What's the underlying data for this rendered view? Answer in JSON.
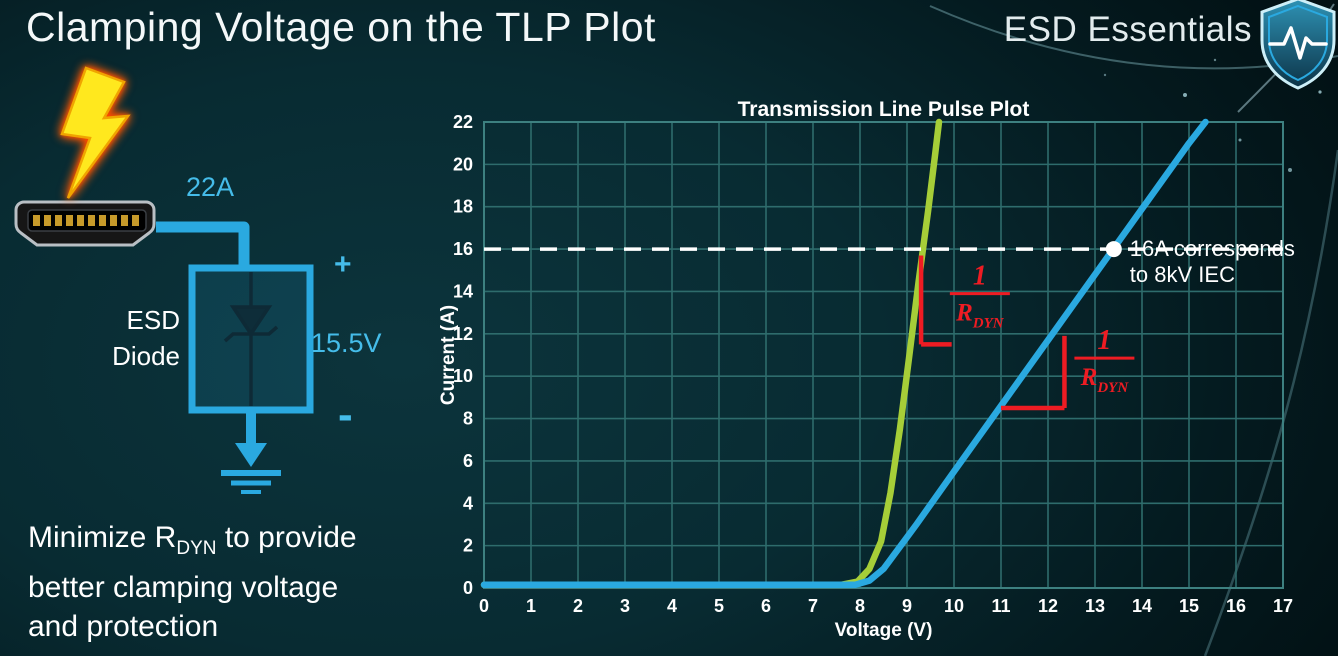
{
  "slide": {
    "title": "Clamping Voltage on the TLP Plot",
    "brand": "ESD Essentials"
  },
  "diagram": {
    "surge_current": "22A",
    "device_line1": "ESD",
    "device_line2": "Diode",
    "plus": "+",
    "clamp_voltage": "15.5V",
    "minus": "-"
  },
  "note": {
    "pre": "Minimize R",
    "sub": "DYN",
    "post": " to provide",
    "line2": "better clamping voltage",
    "line3": "and protection"
  },
  "chart_data": {
    "type": "line",
    "title": "Transmission Line Pulse Plot",
    "xlabel": "Voltage (V)",
    "ylabel": "Current (A)",
    "xlim": [
      0,
      17
    ],
    "ylim": [
      0,
      22
    ],
    "x_ticks": [
      0,
      1,
      2,
      3,
      4,
      5,
      6,
      7,
      8,
      9,
      10,
      11,
      12,
      13,
      14,
      15,
      16,
      17
    ],
    "y_ticks": [
      0,
      2,
      4,
      6,
      8,
      10,
      12,
      14,
      16,
      18,
      20,
      22
    ],
    "grid": true,
    "legend": "none",
    "colors": {
      "grid": "#2e6c6c",
      "frame": "#3d8080",
      "text": "#ffffff",
      "annotation": "#ee1c23",
      "reference": "#ffffff"
    },
    "series": [
      {
        "name": "green-low-rdyn",
        "color": "#a6ce38",
        "width": 6.5,
        "points": [
          [
            0,
            0.15
          ],
          [
            7.6,
            0.15
          ],
          [
            7.95,
            0.3
          ],
          [
            8.2,
            0.9
          ],
          [
            8.45,
            2.2
          ],
          [
            8.65,
            4.5
          ],
          [
            8.85,
            7.5
          ],
          [
            9.05,
            11.0
          ],
          [
            9.25,
            14.5
          ],
          [
            9.45,
            17.8
          ],
          [
            9.6,
            20.5
          ],
          [
            9.68,
            22
          ]
        ]
      },
      {
        "name": "blue-high-rdyn",
        "color": "#2aa9e0",
        "width": 6.5,
        "points": [
          [
            0,
            0.15
          ],
          [
            7.9,
            0.15
          ],
          [
            8.2,
            0.35
          ],
          [
            8.5,
            0.9
          ],
          [
            8.8,
            1.8
          ],
          [
            9.2,
            3.0
          ],
          [
            10,
            5.5
          ],
          [
            11,
            8.6
          ],
          [
            12,
            11.7
          ],
          [
            13,
            14.8
          ],
          [
            14,
            17.9
          ],
          [
            15,
            21.0
          ],
          [
            15.35,
            22
          ]
        ]
      }
    ],
    "reference_line": {
      "y": 16,
      "style": "dashed"
    },
    "marker": {
      "x": 13.4,
      "y": 16,
      "radius": 8,
      "label1": "16A corresponds",
      "label2": "to 8kV IEC"
    },
    "slope_annotations": [
      {
        "segments": [
          [
            9.3,
            15.7,
            9.3,
            11.5
          ],
          [
            9.3,
            11.5,
            9.95,
            11.5
          ]
        ],
        "fraction_center": [
          10.55,
          13.9
        ],
        "numerator": "1",
        "denominator": "R",
        "denominator_sub": "DYN"
      },
      {
        "segments": [
          [
            11.0,
            8.5,
            12.35,
            8.5
          ],
          [
            12.35,
            8.5,
            12.35,
            11.9
          ]
        ],
        "fraction_center": [
          13.2,
          10.85
        ],
        "numerator": "1",
        "denominator": "R",
        "denominator_sub": "DYN"
      }
    ]
  }
}
